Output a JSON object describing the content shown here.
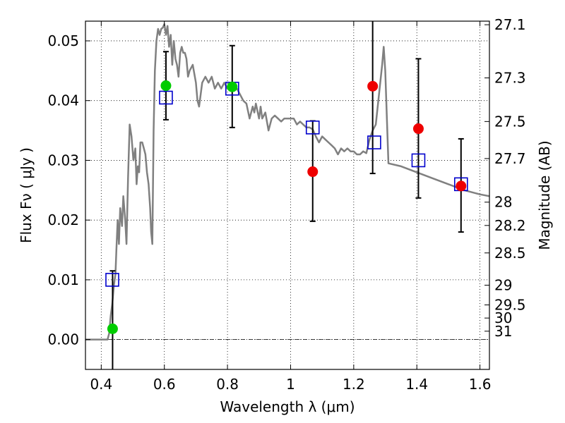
{
  "chart_data": {
    "type": "scatter",
    "xlabel": "Wavelength  λ (μm)",
    "ylabel": "Flux  Fν  ( μJy )",
    "y2label": "Magnitude (AB)",
    "xlim": [
      0.35,
      1.63
    ],
    "ylim": [
      -0.005,
      0.0533
    ],
    "x_ticks": [
      0.4,
      0.6,
      0.8,
      1.0,
      1.2,
      1.4,
      1.6
    ],
    "x_tick_labels": [
      "0.4",
      "0.6",
      "0.8",
      "1",
      "1.2",
      "1.4",
      "1.6"
    ],
    "y_ticks": [
      0.0,
      0.01,
      0.02,
      0.03,
      0.04,
      0.05
    ],
    "y_tick_labels": [
      "0.00",
      "0.01",
      "0.02",
      "0.03",
      "0.04",
      "0.05"
    ],
    "y2_ticks": [
      {
        "label": "27.1",
        "flux": 0.0527
      },
      {
        "label": "27.3",
        "flux": 0.0438
      },
      {
        "label": "27.5",
        "flux": 0.0365
      },
      {
        "label": "27.7",
        "flux": 0.0303
      },
      {
        "label": "28",
        "flux": 0.023
      },
      {
        "label": "28.2",
        "flux": 0.0191
      },
      {
        "label": "28.5",
        "flux": 0.0145
      },
      {
        "label": "29",
        "flux": 0.0091
      },
      {
        "label": "29.5",
        "flux": 0.0058
      },
      {
        "label": "30",
        "flux": 0.0036
      },
      {
        "label": "31",
        "flux": 0.0014
      }
    ],
    "grid": true,
    "zero_line": true,
    "colors": {
      "sed": "#808080",
      "model_box": "#0000cc",
      "green": "#00cc00",
      "red": "#ee0000",
      "errorbar": "#000000"
    },
    "series": [
      {
        "kind": "line",
        "points": [
          [
            0.35,
            0.0
          ],
          [
            0.42,
            0.0
          ],
          [
            0.425,
            0.001
          ],
          [
            0.43,
            0.004
          ],
          [
            0.435,
            0.006
          ],
          [
            0.44,
            0.009
          ],
          [
            0.445,
            0.011
          ],
          [
            0.448,
            0.015
          ],
          [
            0.452,
            0.02
          ],
          [
            0.456,
            0.016
          ],
          [
            0.46,
            0.022
          ],
          [
            0.466,
            0.019
          ],
          [
            0.47,
            0.024
          ],
          [
            0.476,
            0.02
          ],
          [
            0.48,
            0.016
          ],
          [
            0.485,
            0.027
          ],
          [
            0.49,
            0.036
          ],
          [
            0.496,
            0.034
          ],
          [
            0.502,
            0.03
          ],
          [
            0.508,
            0.032
          ],
          [
            0.512,
            0.026
          ],
          [
            0.516,
            0.029
          ],
          [
            0.52,
            0.028
          ],
          [
            0.524,
            0.033
          ],
          [
            0.53,
            0.033
          ],
          [
            0.535,
            0.032
          ],
          [
            0.54,
            0.031
          ],
          [
            0.545,
            0.028
          ],
          [
            0.55,
            0.026
          ],
          [
            0.555,
            0.022
          ],
          [
            0.558,
            0.018
          ],
          [
            0.562,
            0.016
          ],
          [
            0.566,
            0.035
          ],
          [
            0.57,
            0.045
          ],
          [
            0.575,
            0.05
          ],
          [
            0.58,
            0.052
          ],
          [
            0.585,
            0.051
          ],
          [
            0.59,
            0.052
          ],
          [
            0.595,
            0.0522
          ],
          [
            0.6,
            0.0528
          ],
          [
            0.605,
            0.051
          ],
          [
            0.61,
            0.0525
          ],
          [
            0.615,
            0.049
          ],
          [
            0.62,
            0.051
          ],
          [
            0.625,
            0.046
          ],
          [
            0.63,
            0.05
          ],
          [
            0.635,
            0.047
          ],
          [
            0.64,
            0.046
          ],
          [
            0.645,
            0.044
          ],
          [
            0.65,
            0.048
          ],
          [
            0.655,
            0.049
          ],
          [
            0.66,
            0.048
          ],
          [
            0.665,
            0.048
          ],
          [
            0.67,
            0.047
          ],
          [
            0.675,
            0.044
          ],
          [
            0.68,
            0.045
          ],
          [
            0.69,
            0.046
          ],
          [
            0.7,
            0.043
          ],
          [
            0.705,
            0.04
          ],
          [
            0.71,
            0.039
          ],
          [
            0.72,
            0.043
          ],
          [
            0.73,
            0.044
          ],
          [
            0.74,
            0.043
          ],
          [
            0.75,
            0.044
          ],
          [
            0.76,
            0.042
          ],
          [
            0.77,
            0.043
          ],
          [
            0.78,
            0.042
          ],
          [
            0.79,
            0.043
          ],
          [
            0.8,
            0.042
          ],
          [
            0.81,
            0.0425
          ],
          [
            0.82,
            0.042
          ],
          [
            0.83,
            0.042
          ],
          [
            0.84,
            0.041
          ],
          [
            0.85,
            0.04
          ],
          [
            0.86,
            0.0395
          ],
          [
            0.87,
            0.037
          ],
          [
            0.88,
            0.039
          ],
          [
            0.885,
            0.038
          ],
          [
            0.89,
            0.0395
          ],
          [
            0.9,
            0.037
          ],
          [
            0.905,
            0.039
          ],
          [
            0.91,
            0.037
          ],
          [
            0.92,
            0.038
          ],
          [
            0.93,
            0.035
          ],
          [
            0.94,
            0.037
          ],
          [
            0.95,
            0.0375
          ],
          [
            0.96,
            0.037
          ],
          [
            0.97,
            0.0365
          ],
          [
            0.98,
            0.037
          ],
          [
            0.99,
            0.037
          ],
          [
            1.0,
            0.037
          ],
          [
            1.01,
            0.037
          ],
          [
            1.02,
            0.036
          ],
          [
            1.03,
            0.0365
          ],
          [
            1.04,
            0.036
          ],
          [
            1.05,
            0.0355
          ],
          [
            1.06,
            0.0355
          ],
          [
            1.07,
            0.0352
          ],
          [
            1.08,
            0.034
          ],
          [
            1.09,
            0.033
          ],
          [
            1.1,
            0.034
          ],
          [
            1.11,
            0.0335
          ],
          [
            1.12,
            0.033
          ],
          [
            1.13,
            0.0325
          ],
          [
            1.14,
            0.032
          ],
          [
            1.15,
            0.031
          ],
          [
            1.16,
            0.032
          ],
          [
            1.17,
            0.0315
          ],
          [
            1.18,
            0.032
          ],
          [
            1.19,
            0.0315
          ],
          [
            1.2,
            0.0315
          ],
          [
            1.21,
            0.031
          ],
          [
            1.22,
            0.031
          ],
          [
            1.23,
            0.0315
          ],
          [
            1.24,
            0.0312
          ],
          [
            1.25,
            0.0335
          ],
          [
            1.26,
            0.035
          ],
          [
            1.27,
            0.036
          ],
          [
            1.28,
            0.041
          ],
          [
            1.29,
            0.046
          ],
          [
            1.295,
            0.049
          ],
          [
            1.3,
            0.045
          ],
          [
            1.305,
            0.037
          ],
          [
            1.31,
            0.0295
          ],
          [
            1.35,
            0.029
          ],
          [
            1.4,
            0.028
          ],
          [
            1.45,
            0.027
          ],
          [
            1.5,
            0.026
          ],
          [
            1.55,
            0.025
          ],
          [
            1.6,
            0.0243
          ],
          [
            1.63,
            0.024
          ]
        ]
      },
      {
        "kind": "model_box",
        "x": [
          0.435,
          0.605,
          0.815,
          1.07,
          1.265,
          1.405,
          1.54
        ],
        "y": [
          0.01,
          0.0405,
          0.042,
          0.0355,
          0.033,
          0.03,
          0.026
        ]
      },
      {
        "kind": "points_green",
        "x": [
          0.436,
          0.605,
          0.815
        ],
        "y": [
          0.0018,
          0.0425,
          0.0423
        ],
        "yerr_low": [
          -0.006,
          0.0368,
          0.0355
        ],
        "yerr_high": [
          0.0115,
          0.0482,
          0.0492
        ]
      },
      {
        "kind": "points_red",
        "x": [
          1.07,
          1.26,
          1.405,
          1.54
        ],
        "y": [
          0.0281,
          0.0424,
          0.0353,
          0.0257
        ],
        "yerr_low": [
          0.0198,
          0.0278,
          0.0237,
          0.018
        ],
        "yerr_high": [
          0.0366,
          0.054,
          0.047,
          0.0336
        ]
      }
    ]
  }
}
